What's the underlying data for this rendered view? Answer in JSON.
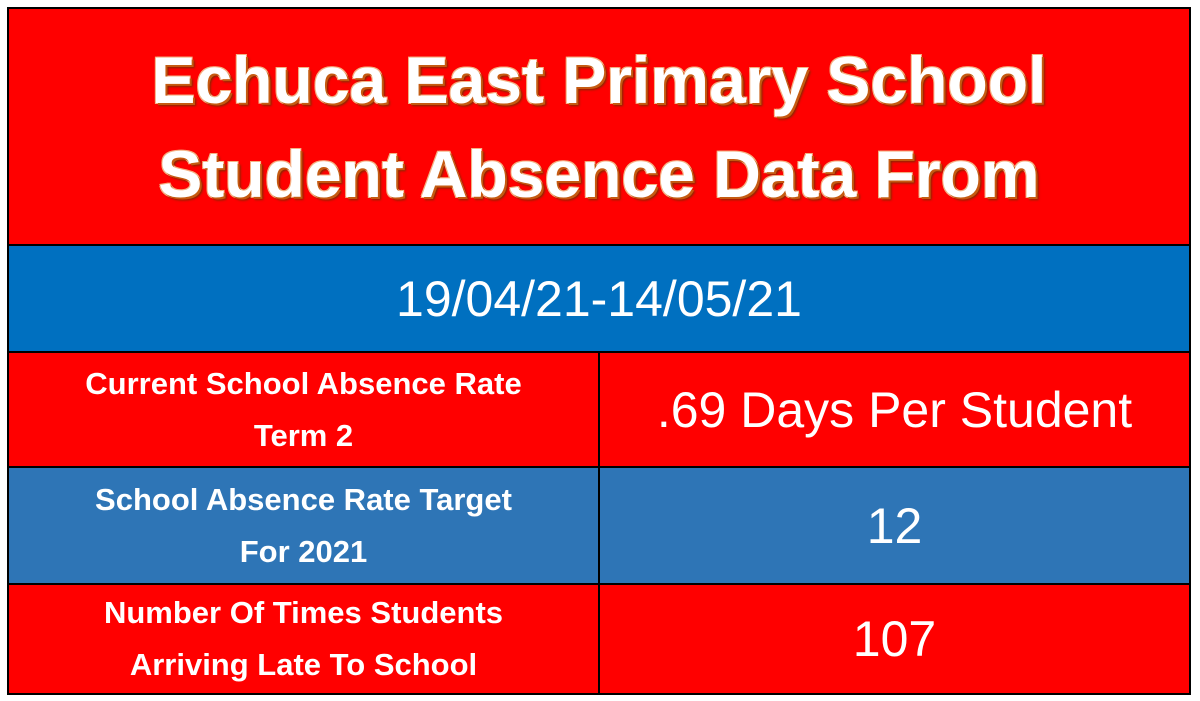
{
  "header": {
    "title_lines": [
      "Echuca East Primary School",
      "Student Absence Data From"
    ],
    "date_range": "19/04/21-14/05/21"
  },
  "table": {
    "rows": [
      {
        "label_lines": [
          "Current School Absence Rate",
          "Term 2"
        ],
        "value": ".69 Days Per Student"
      },
      {
        "label_lines": [
          "School Absence Rate Target",
          "For 2021"
        ],
        "value": 12
      },
      {
        "label_lines": [
          "Number Of Times Students",
          "Arriving Late To School"
        ],
        "value": 107
      }
    ]
  }
}
